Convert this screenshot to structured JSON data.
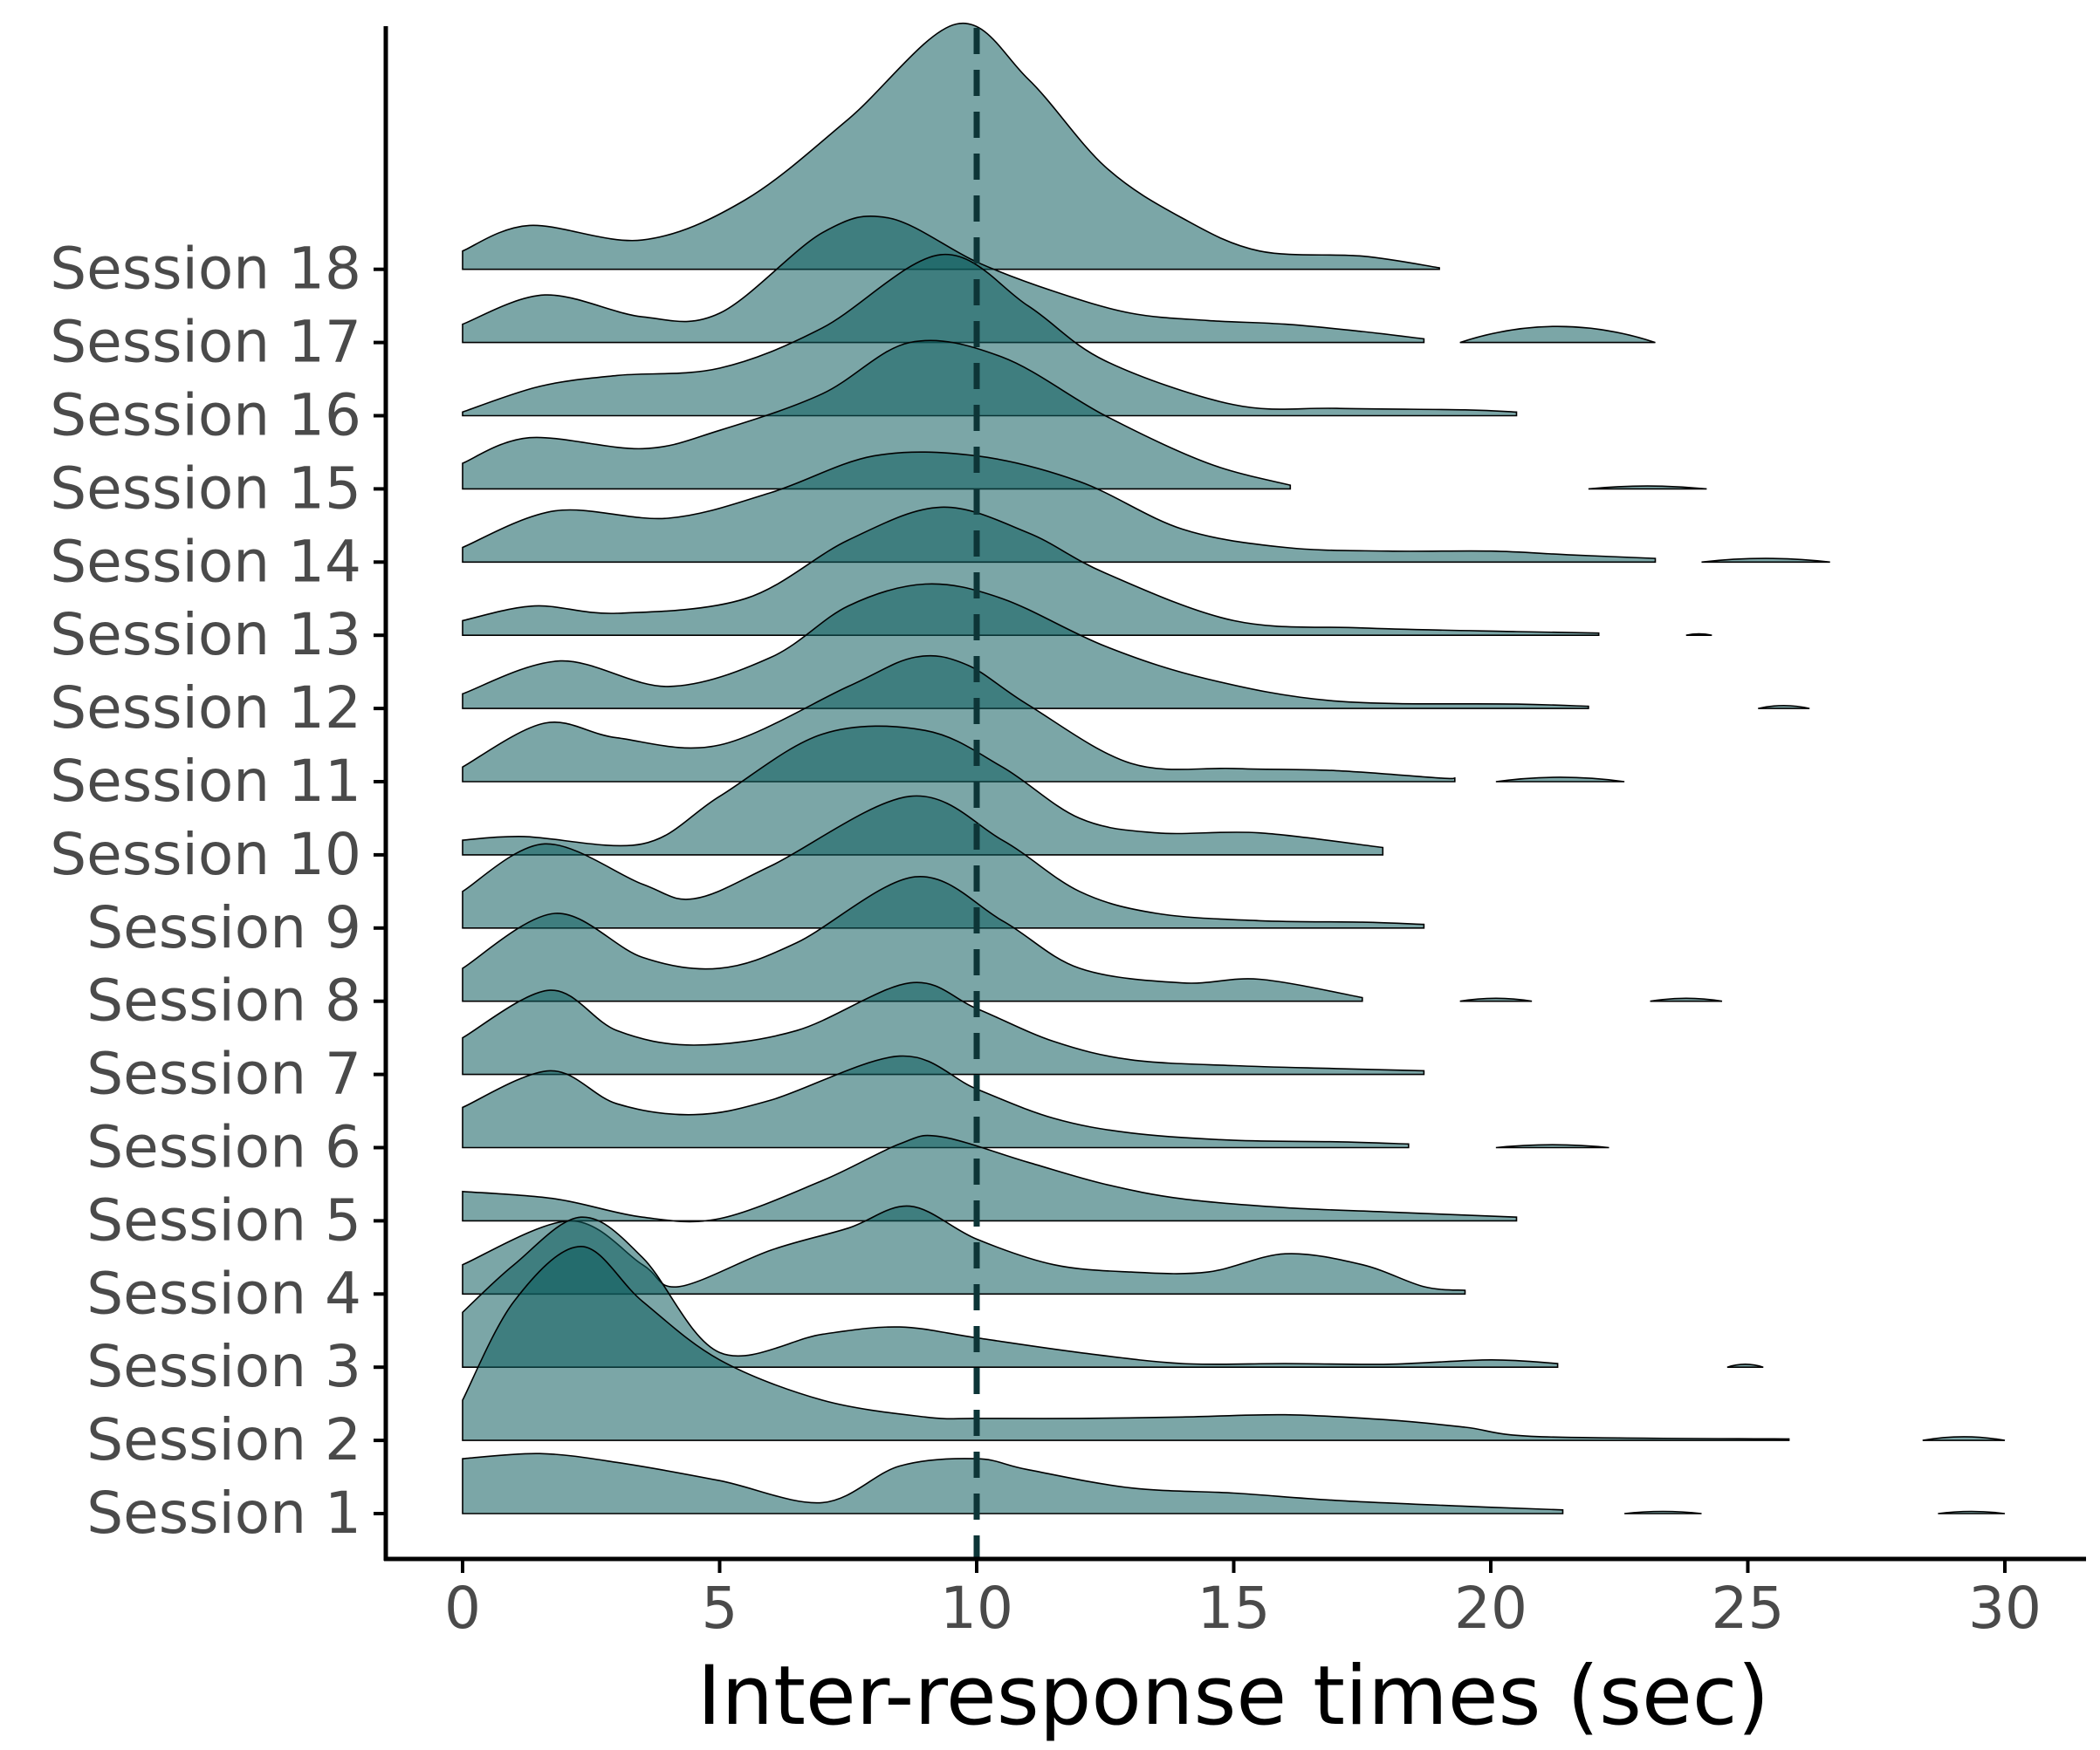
{
  "chart_data": {
    "type": "ridgeline",
    "title": "",
    "xlabel": "Inter-response times (sec)",
    "ylabel": "",
    "xlim": [
      -1.5,
      31.5
    ],
    "xticks": [
      0,
      5,
      10,
      15,
      20,
      25,
      30
    ],
    "xtick_labels": [
      "0",
      "5",
      "10",
      "15",
      "20",
      "25",
      "30"
    ],
    "reference_line": {
      "x": 10,
      "style": "dashed"
    },
    "fill_color": "#0f5c5e",
    "line_color": "#000000",
    "grid": false,
    "density_scale_note": "density heights expressed in units of row spacing",
    "series": [
      {
        "name": "Session 1",
        "points": [
          [
            0,
            0.75
          ],
          [
            1.5,
            0.82
          ],
          [
            3,
            0.7
          ],
          [
            5,
            0.45
          ],
          [
            7,
            0.15
          ],
          [
            8.5,
            0.65
          ],
          [
            10,
            0.75
          ],
          [
            11,
            0.6
          ],
          [
            13,
            0.35
          ],
          [
            15,
            0.28
          ],
          [
            17,
            0.18
          ],
          [
            19.5,
            0.1
          ],
          [
            21.4,
            0.05
          ]
        ],
        "extras": [
          [
            22.6,
            24.1,
            0.03
          ],
          [
            28.7,
            30,
            0.03
          ]
        ]
      },
      {
        "name": "Session 2",
        "points": [
          [
            0,
            0.55
          ],
          [
            1,
            1.9
          ],
          [
            2.3,
            2.65
          ],
          [
            3.5,
            1.9
          ],
          [
            5,
            1.1
          ],
          [
            7,
            0.55
          ],
          [
            9,
            0.32
          ],
          [
            10,
            0.3
          ],
          [
            12,
            0.3
          ],
          [
            14,
            0.32
          ],
          [
            16,
            0.35
          ],
          [
            18,
            0.28
          ],
          [
            19.5,
            0.18
          ],
          [
            21,
            0.05
          ],
          [
            25.8,
            0.02
          ]
        ],
        "extras": [
          [
            28.4,
            30,
            0.05
          ]
        ]
      },
      {
        "name": "Session 3",
        "points": [
          [
            0,
            0.75
          ],
          [
            1,
            1.4
          ],
          [
            2.3,
            2.05
          ],
          [
            3.5,
            1.5
          ],
          [
            5,
            0.2
          ],
          [
            7,
            0.45
          ],
          [
            8.5,
            0.55
          ],
          [
            10,
            0.4
          ],
          [
            12,
            0.2
          ],
          [
            14,
            0.05
          ],
          [
            16,
            0.05
          ],
          [
            18,
            0.04
          ],
          [
            20,
            0.1
          ],
          [
            21.3,
            0.05
          ]
        ],
        "extras": [
          [
            24.6,
            25.3,
            0.04
          ]
        ]
      },
      {
        "name": "Session 4",
        "points": [
          [
            0,
            0.4
          ],
          [
            2.1,
            1
          ],
          [
            3.5,
            0.4
          ],
          [
            4.2,
            0.1
          ],
          [
            6,
            0.6
          ],
          [
            7.5,
            0.9
          ],
          [
            8.7,
            1.2
          ],
          [
            10,
            0.75
          ],
          [
            11.5,
            0.4
          ],
          [
            13,
            0.3
          ],
          [
            14.5,
            0.3
          ],
          [
            16,
            0.55
          ],
          [
            17.5,
            0.4
          ],
          [
            18.7,
            0.1
          ],
          [
            19.5,
            0.05
          ]
        ],
        "extras": []
      },
      {
        "name": "Session 5",
        "points": [
          [
            0,
            0.4
          ],
          [
            1.8,
            0.3
          ],
          [
            3.5,
            0.05
          ],
          [
            5,
            0.03
          ],
          [
            7,
            0.55
          ],
          [
            8.5,
            1.05
          ],
          [
            9.3,
            1.15
          ],
          [
            11,
            0.8
          ],
          [
            12.5,
            0.5
          ],
          [
            14,
            0.3
          ],
          [
            16,
            0.18
          ],
          [
            18,
            0.12
          ],
          [
            20.5,
            0.05
          ]
        ],
        "extras": []
      },
      {
        "name": "Session 6",
        "points": [
          [
            0,
            0.55
          ],
          [
            1.7,
            1.05
          ],
          [
            3,
            0.6
          ],
          [
            4.5,
            0.45
          ],
          [
            6,
            0.65
          ],
          [
            8.5,
            1.25
          ],
          [
            10,
            0.8
          ],
          [
            11.5,
            0.4
          ],
          [
            13,
            0.2
          ],
          [
            15,
            0.1
          ],
          [
            17,
            0.08
          ],
          [
            18.4,
            0.05
          ]
        ],
        "extras": [
          [
            20.1,
            22.3,
            0.04
          ]
        ]
      },
      {
        "name": "Session 7",
        "points": [
          [
            0,
            0.5
          ],
          [
            1.7,
            1.15
          ],
          [
            3,
            0.6
          ],
          [
            4.5,
            0.4
          ],
          [
            6.5,
            0.6
          ],
          [
            8.7,
            1.25
          ],
          [
            10,
            0.9
          ],
          [
            11.5,
            0.45
          ],
          [
            13,
            0.2
          ],
          [
            15,
            0.12
          ],
          [
            17,
            0.08
          ],
          [
            18.7,
            0.05
          ]
        ],
        "extras": []
      },
      {
        "name": "Session 8",
        "points": [
          [
            0,
            0.45
          ],
          [
            1.8,
            1.2
          ],
          [
            3.5,
            0.6
          ],
          [
            5,
            0.45
          ],
          [
            6.5,
            0.8
          ],
          [
            8.8,
            1.7
          ],
          [
            10.5,
            1.1
          ],
          [
            12,
            0.45
          ],
          [
            14,
            0.25
          ],
          [
            15.5,
            0.3
          ],
          [
            17.5,
            0.05
          ]
        ],
        "extras": [
          [
            19.4,
            20.8,
            0.04
          ],
          [
            23.1,
            24.5,
            0.04
          ]
        ]
      },
      {
        "name": "Session 9",
        "points": [
          [
            0,
            0.5
          ],
          [
            1.6,
            1.15
          ],
          [
            3.5,
            0.6
          ],
          [
            4.5,
            0.4
          ],
          [
            6,
            0.85
          ],
          [
            8.7,
            1.8
          ],
          [
            10.5,
            1.2
          ],
          [
            12,
            0.5
          ],
          [
            13.5,
            0.2
          ],
          [
            15.5,
            0.1
          ],
          [
            17.5,
            0.08
          ],
          [
            18.7,
            0.05
          ]
        ],
        "extras": []
      },
      {
        "name": "Session 10",
        "points": [
          [
            0,
            0.2
          ],
          [
            1.2,
            0.25
          ],
          [
            3.5,
            0.15
          ],
          [
            5,
            0.8
          ],
          [
            7,
            1.65
          ],
          [
            9,
            1.7
          ],
          [
            10.5,
            1.2
          ],
          [
            12,
            0.5
          ],
          [
            13.5,
            0.3
          ],
          [
            15.5,
            0.3
          ],
          [
            17.9,
            0.1
          ]
        ],
        "extras": []
      },
      {
        "name": "Session 11",
        "points": [
          [
            0,
            0.2
          ],
          [
            1.6,
            0.8
          ],
          [
            3,
            0.6
          ],
          [
            5,
            0.5
          ],
          [
            7.5,
            1.3
          ],
          [
            8.8,
            1.7
          ],
          [
            9.8,
            1.6
          ],
          [
            11,
            1.05
          ],
          [
            13,
            0.25
          ],
          [
            15,
            0.18
          ],
          [
            17,
            0.15
          ],
          [
            19,
            0.05
          ],
          [
            19.3,
            0.05
          ]
        ],
        "extras": [
          [
            20.1,
            22.6,
            0.06
          ]
        ]
      },
      {
        "name": "Session 12",
        "points": [
          [
            0,
            0.2
          ],
          [
            1.9,
            0.65
          ],
          [
            4,
            0.3
          ],
          [
            6,
            0.7
          ],
          [
            7.5,
            1.4
          ],
          [
            9,
            1.7
          ],
          [
            10.5,
            1.5
          ],
          [
            12.5,
            0.85
          ],
          [
            14.5,
            0.4
          ],
          [
            17,
            0.1
          ],
          [
            20.5,
            0.06
          ],
          [
            21.9,
            0.03
          ]
        ],
        "extras": [
          [
            25.2,
            26.2,
            0.04
          ]
        ]
      },
      {
        "name": "Session 13",
        "points": [
          [
            0,
            0.2
          ],
          [
            1.4,
            0.4
          ],
          [
            3,
            0.3
          ],
          [
            5.5,
            0.5
          ],
          [
            7.5,
            1.3
          ],
          [
            9.3,
            1.75
          ],
          [
            11,
            1.4
          ],
          [
            12.5,
            0.85
          ],
          [
            15,
            0.2
          ],
          [
            17.5,
            0.1
          ],
          [
            20.5,
            0.05
          ],
          [
            22.1,
            0.03
          ]
        ],
        "extras": [
          [
            23.8,
            24.3,
            0.02
          ]
        ]
      },
      {
        "name": "Session 14",
        "points": [
          [
            0,
            0.2
          ],
          [
            1.8,
            0.7
          ],
          [
            4,
            0.6
          ],
          [
            6,
            0.95
          ],
          [
            8,
            1.45
          ],
          [
            10,
            1.45
          ],
          [
            12,
            1.1
          ],
          [
            14,
            0.45
          ],
          [
            16,
            0.2
          ],
          [
            18,
            0.15
          ],
          [
            20,
            0.15
          ],
          [
            21.5,
            0.1
          ],
          [
            23.2,
            0.05
          ]
        ],
        "extras": [
          [
            24.1,
            26.6,
            0.05
          ]
        ]
      },
      {
        "name": "Session 15",
        "points": [
          [
            0,
            0.35
          ],
          [
            1.3,
            0.7
          ],
          [
            3.5,
            0.55
          ],
          [
            5,
            0.8
          ],
          [
            7,
            1.3
          ],
          [
            8.7,
            2.0
          ],
          [
            10.5,
            1.8
          ],
          [
            12.5,
            1.0
          ],
          [
            14.5,
            0.35
          ],
          [
            16.1,
            0.05
          ]
        ],
        "extras": [
          [
            21.9,
            24.2,
            0.04
          ]
        ]
      },
      {
        "name": "Session 16",
        "points": [
          [
            0,
            0.05
          ],
          [
            1.5,
            0.4
          ],
          [
            3,
            0.55
          ],
          [
            5,
            0.65
          ],
          [
            7,
            1.2
          ],
          [
            9.3,
            2.2
          ],
          [
            11,
            1.5
          ],
          [
            12.5,
            0.75
          ],
          [
            15,
            0.15
          ],
          [
            17,
            0.1
          ],
          [
            19.5,
            0.08
          ],
          [
            20.5,
            0.05
          ]
        ],
        "extras": []
      },
      {
        "name": "Session 17",
        "points": [
          [
            0,
            0.25
          ],
          [
            1.6,
            0.65
          ],
          [
            3.5,
            0.35
          ],
          [
            5,
            0.4
          ],
          [
            7,
            1.5
          ],
          [
            8.3,
            1.7
          ],
          [
            10,
            1.1
          ],
          [
            11.5,
            0.7
          ],
          [
            13,
            0.4
          ],
          [
            14.5,
            0.3
          ],
          [
            16,
            0.25
          ],
          [
            17.5,
            0.15
          ],
          [
            18.7,
            0.05
          ]
        ],
        "extras": [
          [
            19.4,
            23.2,
            0.22
          ]
        ]
      },
      {
        "name": "Session 18",
        "points": [
          [
            0,
            0.25
          ],
          [
            1.3,
            0.6
          ],
          [
            3.5,
            0.4
          ],
          [
            5.5,
            0.95
          ],
          [
            7.5,
            2.05
          ],
          [
            9.6,
            3.35
          ],
          [
            11,
            2.6
          ],
          [
            12.5,
            1.4
          ],
          [
            14,
            0.7
          ],
          [
            15.5,
            0.25
          ],
          [
            17.5,
            0.18
          ],
          [
            19,
            0.02
          ]
        ],
        "extras": []
      }
    ]
  }
}
